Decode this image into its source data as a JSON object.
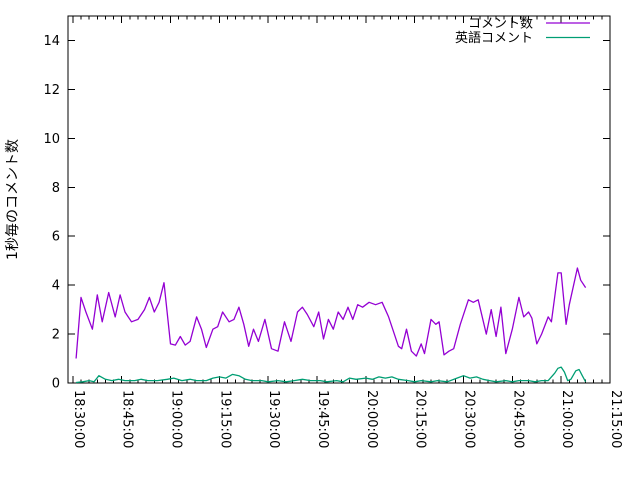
{
  "window": {
    "background": "#ffffff"
  },
  "chart_data": {
    "type": "line",
    "title": "",
    "xlabel": "",
    "ylabel": "1秒毎のコメント数",
    "grid": false,
    "legend_position": "top-right-inside",
    "ylim": [
      0,
      15
    ],
    "ytick_step": 2,
    "ytick_labels": [
      "0",
      "2",
      "4",
      "6",
      "8",
      "10",
      "12",
      "14"
    ],
    "xlim": [
      "18:28:30",
      "21:15:00"
    ],
    "xtick_labels": [
      "18:30:00",
      "18:45:00",
      "19:00:00",
      "19:15:00",
      "19:30:00",
      "19:45:00",
      "20:00:00",
      "20:15:00",
      "20:30:00",
      "20:45:00",
      "21:00:00",
      "21:15:00"
    ],
    "xtick_interval_minutes": 15,
    "x_minor_interval_minutes": 2.5,
    "colors": {
      "comments": "#9400d3",
      "english": "#009e73",
      "axis": "#000000",
      "text": "#000000"
    },
    "series": [
      {
        "name": "コメント数",
        "color_key": "comments",
        "points": [
          [
            "18:31:00",
            1.0
          ],
          [
            "18:32:30",
            3.5
          ],
          [
            "18:34:00",
            2.9
          ],
          [
            "18:36:00",
            2.2
          ],
          [
            "18:37:30",
            3.6
          ],
          [
            "18:39:00",
            2.5
          ],
          [
            "18:41:00",
            3.7
          ],
          [
            "18:43:00",
            2.7
          ],
          [
            "18:44:30",
            3.6
          ],
          [
            "18:46:00",
            2.9
          ],
          [
            "18:48:00",
            2.5
          ],
          [
            "18:50:00",
            2.6
          ],
          [
            "18:52:00",
            3.0
          ],
          [
            "18:53:30",
            3.5
          ],
          [
            "18:55:00",
            2.9
          ],
          [
            "18:56:30",
            3.3
          ],
          [
            "18:58:00",
            4.1
          ],
          [
            "19:00:00",
            1.6
          ],
          [
            "19:01:30",
            1.55
          ],
          [
            "19:03:00",
            1.9
          ],
          [
            "19:04:30",
            1.55
          ],
          [
            "19:06:00",
            1.7
          ],
          [
            "19:08:00",
            2.7
          ],
          [
            "19:09:30",
            2.2
          ],
          [
            "19:11:00",
            1.45
          ],
          [
            "19:13:00",
            2.2
          ],
          [
            "19:14:30",
            2.3
          ],
          [
            "19:16:00",
            2.9
          ],
          [
            "19:18:00",
            2.5
          ],
          [
            "19:19:30",
            2.6
          ],
          [
            "19:21:00",
            3.1
          ],
          [
            "19:22:30",
            2.4
          ],
          [
            "19:24:00",
            1.5
          ],
          [
            "19:25:30",
            2.2
          ],
          [
            "19:27:00",
            1.7
          ],
          [
            "19:29:00",
            2.6
          ],
          [
            "19:31:00",
            1.4
          ],
          [
            "19:33:00",
            1.3
          ],
          [
            "19:35:00",
            2.5
          ],
          [
            "19:37:00",
            1.7
          ],
          [
            "19:39:00",
            2.9
          ],
          [
            "19:40:30",
            3.1
          ],
          [
            "19:42:00",
            2.8
          ],
          [
            "19:44:00",
            2.3
          ],
          [
            "19:45:30",
            2.9
          ],
          [
            "19:47:00",
            1.8
          ],
          [
            "19:48:30",
            2.6
          ],
          [
            "19:50:00",
            2.2
          ],
          [
            "19:51:30",
            2.9
          ],
          [
            "19:53:00",
            2.6
          ],
          [
            "19:54:30",
            3.1
          ],
          [
            "19:56:00",
            2.6
          ],
          [
            "19:57:30",
            3.2
          ],
          [
            "19:59:00",
            3.1
          ],
          [
            "20:01:00",
            3.3
          ],
          [
            "20:03:00",
            3.2
          ],
          [
            "20:05:00",
            3.3
          ],
          [
            "20:07:00",
            2.7
          ],
          [
            "20:08:30",
            2.1
          ],
          [
            "20:10:00",
            1.5
          ],
          [
            "20:11:00",
            1.4
          ],
          [
            "20:12:30",
            2.2
          ],
          [
            "20:14:00",
            1.3
          ],
          [
            "20:15:30",
            1.1
          ],
          [
            "20:17:00",
            1.6
          ],
          [
            "20:18:00",
            1.2
          ],
          [
            "20:20:00",
            2.6
          ],
          [
            "20:21:30",
            2.4
          ],
          [
            "20:22:30",
            2.5
          ],
          [
            "20:24:00",
            1.15
          ],
          [
            "20:25:30",
            1.3
          ],
          [
            "20:27:00",
            1.4
          ],
          [
            "20:29:00",
            2.4
          ],
          [
            "20:31:30",
            3.4
          ],
          [
            "20:33:00",
            3.3
          ],
          [
            "20:34:30",
            3.4
          ],
          [
            "20:37:00",
            2.0
          ],
          [
            "20:38:30",
            3.0
          ],
          [
            "20:40:00",
            1.9
          ],
          [
            "20:41:30",
            3.1
          ],
          [
            "20:43:00",
            1.2
          ],
          [
            "20:45:00",
            2.2
          ],
          [
            "20:47:00",
            3.5
          ],
          [
            "20:48:30",
            2.7
          ],
          [
            "20:50:00",
            2.9
          ],
          [
            "20:51:00",
            2.65
          ],
          [
            "20:52:30",
            1.6
          ],
          [
            "20:54:00",
            2.0
          ],
          [
            "20:56:00",
            2.7
          ],
          [
            "20:57:00",
            2.5
          ],
          [
            "20:59:00",
            4.5
          ],
          [
            "21:00:00",
            4.5
          ],
          [
            "21:01:30",
            2.4
          ],
          [
            "21:02:30",
            3.2
          ],
          [
            "21:05:00",
            4.7
          ],
          [
            "21:06:00",
            4.2
          ],
          [
            "21:07:30",
            3.9
          ]
        ]
      },
      {
        "name": "英語コメント",
        "color_key": "english",
        "points": [
          [
            "18:31:00",
            0.02
          ],
          [
            "18:33:00",
            0.05
          ],
          [
            "18:35:00",
            0.1
          ],
          [
            "18:36:30",
            0.05
          ],
          [
            "18:38:00",
            0.3
          ],
          [
            "18:40:00",
            0.15
          ],
          [
            "18:42:00",
            0.1
          ],
          [
            "18:44:00",
            0.15
          ],
          [
            "18:46:00",
            0.1
          ],
          [
            "18:49:00",
            0.1
          ],
          [
            "18:51:00",
            0.15
          ],
          [
            "18:53:00",
            0.1
          ],
          [
            "18:56:00",
            0.1
          ],
          [
            "18:59:00",
            0.15
          ],
          [
            "19:01:00",
            0.2
          ],
          [
            "19:03:30",
            0.1
          ],
          [
            "19:06:00",
            0.15
          ],
          [
            "19:08:00",
            0.1
          ],
          [
            "19:11:00",
            0.1
          ],
          [
            "19:13:00",
            0.2
          ],
          [
            "19:15:00",
            0.25
          ],
          [
            "19:17:00",
            0.2
          ],
          [
            "19:19:00",
            0.35
          ],
          [
            "19:21:00",
            0.3
          ],
          [
            "19:23:00",
            0.15
          ],
          [
            "19:25:00",
            0.1
          ],
          [
            "19:28:00",
            0.1
          ],
          [
            "19:30:00",
            0.05
          ],
          [
            "19:33:00",
            0.1
          ],
          [
            "19:35:30",
            0.05
          ],
          [
            "19:38:00",
            0.1
          ],
          [
            "19:40:30",
            0.15
          ],
          [
            "19:43:00",
            0.1
          ],
          [
            "19:46:00",
            0.1
          ],
          [
            "19:48:00",
            0.05
          ],
          [
            "19:51:00",
            0.1
          ],
          [
            "19:53:00",
            0.05
          ],
          [
            "19:55:00",
            0.2
          ],
          [
            "19:57:00",
            0.15
          ],
          [
            "20:00:00",
            0.2
          ],
          [
            "20:02:00",
            0.15
          ],
          [
            "20:04:00",
            0.25
          ],
          [
            "20:06:00",
            0.2
          ],
          [
            "20:08:00",
            0.25
          ],
          [
            "20:10:00",
            0.15
          ],
          [
            "20:13:00",
            0.1
          ],
          [
            "20:15:00",
            0.05
          ],
          [
            "20:17:00",
            0.1
          ],
          [
            "20:20:00",
            0.05
          ],
          [
            "20:22:00",
            0.1
          ],
          [
            "20:25:00",
            0.05
          ],
          [
            "20:28:00",
            0.2
          ],
          [
            "20:30:00",
            0.3
          ],
          [
            "20:32:00",
            0.2
          ],
          [
            "20:34:00",
            0.25
          ],
          [
            "20:36:00",
            0.15
          ],
          [
            "20:38:00",
            0.1
          ],
          [
            "20:40:00",
            0.05
          ],
          [
            "20:43:00",
            0.1
          ],
          [
            "20:45:00",
            0.05
          ],
          [
            "20:47:00",
            0.1
          ],
          [
            "20:50:00",
            0.1
          ],
          [
            "20:52:00",
            0.05
          ],
          [
            "20:54:00",
            0.1
          ],
          [
            "20:56:00",
            0.1
          ],
          [
            "20:58:00",
            0.4
          ],
          [
            "20:59:00",
            0.6
          ],
          [
            "21:00:00",
            0.65
          ],
          [
            "21:01:00",
            0.45
          ],
          [
            "21:02:00",
            0.1
          ],
          [
            "21:03:00",
            0.15
          ],
          [
            "21:04:30",
            0.5
          ],
          [
            "21:05:30",
            0.55
          ],
          [
            "21:06:30",
            0.3
          ],
          [
            "21:07:30",
            0.05
          ]
        ]
      }
    ]
  }
}
